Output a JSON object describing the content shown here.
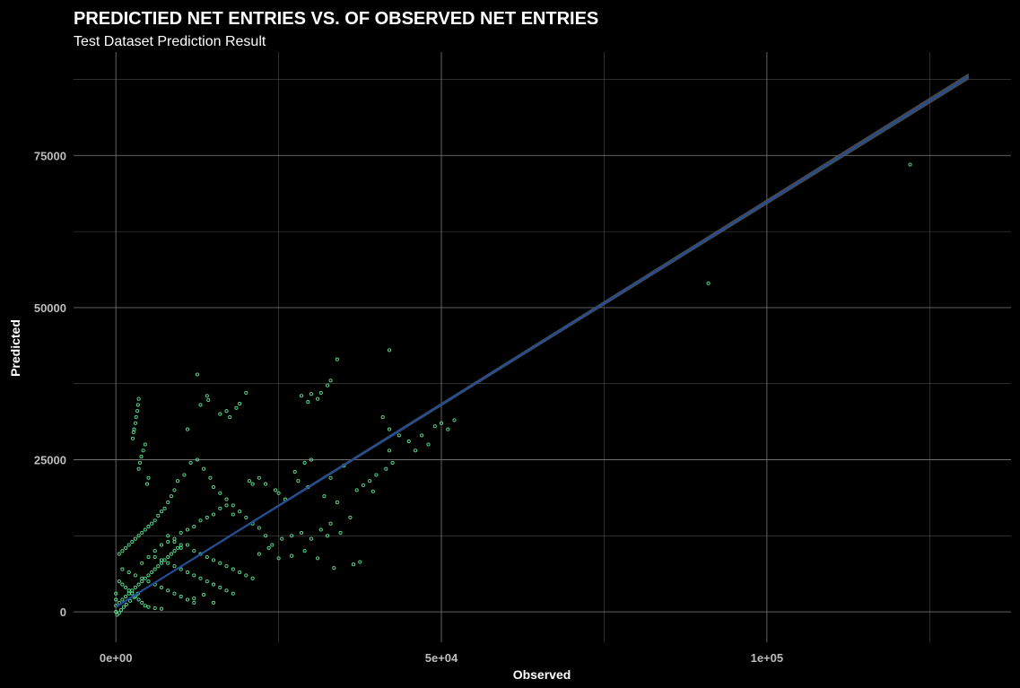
{
  "chart_data": {
    "type": "scatter",
    "title": "PREDICTIED NET ENTRIES VS. OF OBSERVED NET ENTRIES",
    "subtitle": "Test Dataset Prediction Result",
    "xlabel": "Observed",
    "ylabel": "Predicted",
    "x_ticks": [
      {
        "value": 0,
        "label": "0e+00"
      },
      {
        "value": 50000,
        "label": "5e+04"
      },
      {
        "value": 100000,
        "label": "1e+05"
      }
    ],
    "y_ticks": [
      {
        "value": 0,
        "label": "0"
      },
      {
        "value": 25000,
        "label": "25000"
      },
      {
        "value": 50000,
        "label": "50000"
      },
      {
        "value": 75000,
        "label": "75000"
      }
    ],
    "xlim": [
      -6500,
      137500
    ],
    "ylim": [
      -5000,
      92000
    ],
    "grid": true,
    "legend": "none",
    "colors": {
      "background": "#000000",
      "points": "#5be08f",
      "fit_line": "#1f4e9c",
      "confidence_band": "#555555",
      "grid": "#6e6e6e",
      "text": "#ffffff",
      "tick_text": "#bdbdbd"
    },
    "fit_line": {
      "x": [
        0,
        131000
      ],
      "y": [
        800,
        88000
      ]
    },
    "series": [
      {
        "values": [
          [
            122000,
            73500
          ],
          [
            91000,
            54000
          ],
          [
            42000,
            43000
          ],
          [
            34000,
            41500
          ],
          [
            33000,
            38000
          ],
          [
            32500,
            37200
          ],
          [
            31500,
            36000
          ],
          [
            30000,
            35800
          ],
          [
            31000,
            35000
          ],
          [
            29500,
            34500
          ],
          [
            28500,
            35500
          ],
          [
            20000,
            36000
          ],
          [
            19000,
            34200
          ],
          [
            18500,
            33500
          ],
          [
            17000,
            33000
          ],
          [
            16000,
            32500
          ],
          [
            17500,
            32000
          ],
          [
            14000,
            35500
          ],
          [
            14200,
            34800
          ],
          [
            13000,
            34000
          ],
          [
            12500,
            39000
          ],
          [
            11000,
            30000
          ],
          [
            3500,
            35000
          ],
          [
            3400,
            34000
          ],
          [
            3300,
            33000
          ],
          [
            3100,
            32000
          ],
          [
            3000,
            31000
          ],
          [
            2800,
            30000
          ],
          [
            2700,
            29500
          ],
          [
            2600,
            28500
          ],
          [
            4500,
            27500
          ],
          [
            4200,
            26500
          ],
          [
            3900,
            25500
          ],
          [
            3700,
            24500
          ],
          [
            3500,
            23500
          ],
          [
            5000,
            22000
          ],
          [
            4800,
            21000
          ],
          [
            41000,
            32000
          ],
          [
            42000,
            30000
          ],
          [
            43500,
            29000
          ],
          [
            45000,
            28000
          ],
          [
            47000,
            29000
          ],
          [
            49000,
            30500
          ],
          [
            50000,
            31000
          ],
          [
            52000,
            31500
          ],
          [
            51000,
            30000
          ],
          [
            48000,
            27500
          ],
          [
            46000,
            26500
          ],
          [
            42000,
            26500
          ],
          [
            42500,
            24500
          ],
          [
            41500,
            23500
          ],
          [
            40000,
            22500
          ],
          [
            39000,
            21500
          ],
          [
            38000,
            20800
          ],
          [
            37000,
            20000
          ],
          [
            39500,
            19800
          ],
          [
            36500,
            7800
          ],
          [
            37500,
            8200
          ],
          [
            33500,
            7200
          ],
          [
            31000,
            8800
          ],
          [
            29000,
            10000
          ],
          [
            27000,
            9200
          ],
          [
            25000,
            8800
          ],
          [
            15000,
            1500
          ],
          [
            13500,
            2800
          ],
          [
            12000,
            2200
          ],
          [
            26000,
            18500
          ],
          [
            25000,
            19500
          ],
          [
            24500,
            20000
          ],
          [
            23000,
            21000
          ],
          [
            22000,
            22000
          ],
          [
            21000,
            21000
          ],
          [
            20500,
            21500
          ],
          [
            30000,
            25000
          ],
          [
            29000,
            24500
          ],
          [
            27500,
            23000
          ],
          [
            28000,
            21500
          ],
          [
            29500,
            20500
          ],
          [
            33000,
            22000
          ],
          [
            35000,
            24000
          ],
          [
            32000,
            19000
          ],
          [
            34000,
            18000
          ],
          [
            36000,
            15500
          ],
          [
            33000,
            14500
          ],
          [
            24000,
            11000
          ],
          [
            23000,
            12500
          ],
          [
            22000,
            13800
          ],
          [
            21000,
            14500
          ],
          [
            20000,
            15500
          ],
          [
            19000,
            16500
          ],
          [
            18000,
            17500
          ],
          [
            17000,
            18500
          ],
          [
            16000,
            19500
          ],
          [
            15000,
            20500
          ],
          [
            14500,
            22000
          ],
          [
            13500,
            23500
          ],
          [
            12500,
            25000
          ],
          [
            11500,
            24500
          ],
          [
            10500,
            22500
          ],
          [
            9500,
            21500
          ],
          [
            9000,
            20000
          ],
          [
            8500,
            19000
          ],
          [
            8000,
            18000
          ],
          [
            7500,
            17000
          ],
          [
            7000,
            16500
          ],
          [
            6500,
            15800
          ],
          [
            6000,
            15000
          ],
          [
            5500,
            14500
          ],
          [
            5000,
            14000
          ],
          [
            4500,
            13500
          ],
          [
            4000,
            13000
          ],
          [
            3500,
            12500
          ],
          [
            3000,
            12000
          ],
          [
            2500,
            11500
          ],
          [
            2000,
            11000
          ],
          [
            1500,
            10500
          ],
          [
            1000,
            10000
          ],
          [
            500,
            9500
          ],
          [
            8000,
            12500
          ],
          [
            9000,
            11500
          ],
          [
            10000,
            10500
          ],
          [
            11000,
            11000
          ],
          [
            12000,
            10000
          ],
          [
            13000,
            9500
          ],
          [
            14000,
            9000
          ],
          [
            15000,
            8500
          ],
          [
            16000,
            8000
          ],
          [
            17000,
            7500
          ],
          [
            18000,
            7000
          ],
          [
            19000,
            6500
          ],
          [
            20000,
            6000
          ],
          [
            21000,
            5500
          ],
          [
            6000,
            9000
          ],
          [
            7000,
            8500
          ],
          [
            8000,
            8000
          ],
          [
            9000,
            7500
          ],
          [
            10000,
            7000
          ],
          [
            11000,
            6500
          ],
          [
            12000,
            6000
          ],
          [
            13000,
            5500
          ],
          [
            14000,
            5000
          ],
          [
            15000,
            4500
          ],
          [
            16000,
            4000
          ],
          [
            17000,
            3500
          ],
          [
            18000,
            3000
          ],
          [
            1000,
            7000
          ],
          [
            2000,
            6500
          ],
          [
            3000,
            6000
          ],
          [
            4000,
            5500
          ],
          [
            5000,
            5000
          ],
          [
            6000,
            4500
          ],
          [
            7000,
            4000
          ],
          [
            8000,
            3500
          ],
          [
            9000,
            3000
          ],
          [
            10000,
            2500
          ],
          [
            11000,
            2000
          ],
          [
            12000,
            1500
          ],
          [
            500,
            5000
          ],
          [
            1000,
            4500
          ],
          [
            1500,
            4000
          ],
          [
            2000,
            3500
          ],
          [
            2500,
            3000
          ],
          [
            3000,
            2500
          ],
          [
            3500,
            2000
          ],
          [
            4000,
            1500
          ],
          [
            4500,
            1000
          ],
          [
            5000,
            800
          ],
          [
            6000,
            600
          ],
          [
            7000,
            500
          ],
          [
            0,
            3000
          ],
          [
            0,
            2000
          ],
          [
            0,
            1000
          ],
          [
            0,
            0
          ],
          [
            200,
            -500
          ],
          [
            500,
            -200
          ],
          [
            800,
            300
          ],
          [
            1200,
            800
          ],
          [
            1600,
            1200
          ],
          [
            2200,
            1800
          ],
          [
            2800,
            2400
          ],
          [
            3400,
            3000
          ],
          [
            500,
            1500
          ],
          [
            1000,
            2000
          ],
          [
            1500,
            2500
          ],
          [
            2000,
            3000
          ],
          [
            2500,
            3500
          ],
          [
            3000,
            4000
          ],
          [
            3500,
            4500
          ],
          [
            4000,
            5000
          ],
          [
            4500,
            5500
          ],
          [
            5000,
            6000
          ],
          [
            5500,
            6500
          ],
          [
            6000,
            7000
          ],
          [
            6500,
            7500
          ],
          [
            7000,
            8000
          ],
          [
            7500,
            8500
          ],
          [
            8000,
            9000
          ],
          [
            8500,
            9500
          ],
          [
            9000,
            10000
          ],
          [
            9500,
            10500
          ],
          [
            10000,
            11000
          ],
          [
            4000,
            8000
          ],
          [
            5000,
            9000
          ],
          [
            6000,
            10000
          ],
          [
            7000,
            11000
          ],
          [
            8000,
            11500
          ],
          [
            9000,
            12000
          ],
          [
            10000,
            13000
          ],
          [
            11000,
            13500
          ],
          [
            12000,
            14000
          ],
          [
            13000,
            15000
          ],
          [
            14000,
            15500
          ],
          [
            15000,
            16000
          ],
          [
            16000,
            17000
          ],
          [
            17000,
            17500
          ],
          [
            18000,
            16000
          ],
          [
            22000,
            9500
          ],
          [
            23500,
            10500
          ],
          [
            25500,
            12000
          ],
          [
            27000,
            12500
          ],
          [
            28500,
            13000
          ],
          [
            30000,
            12000
          ],
          [
            31500,
            13500
          ],
          [
            32500,
            12500
          ],
          [
            34500,
            13000
          ]
        ]
      }
    ]
  }
}
